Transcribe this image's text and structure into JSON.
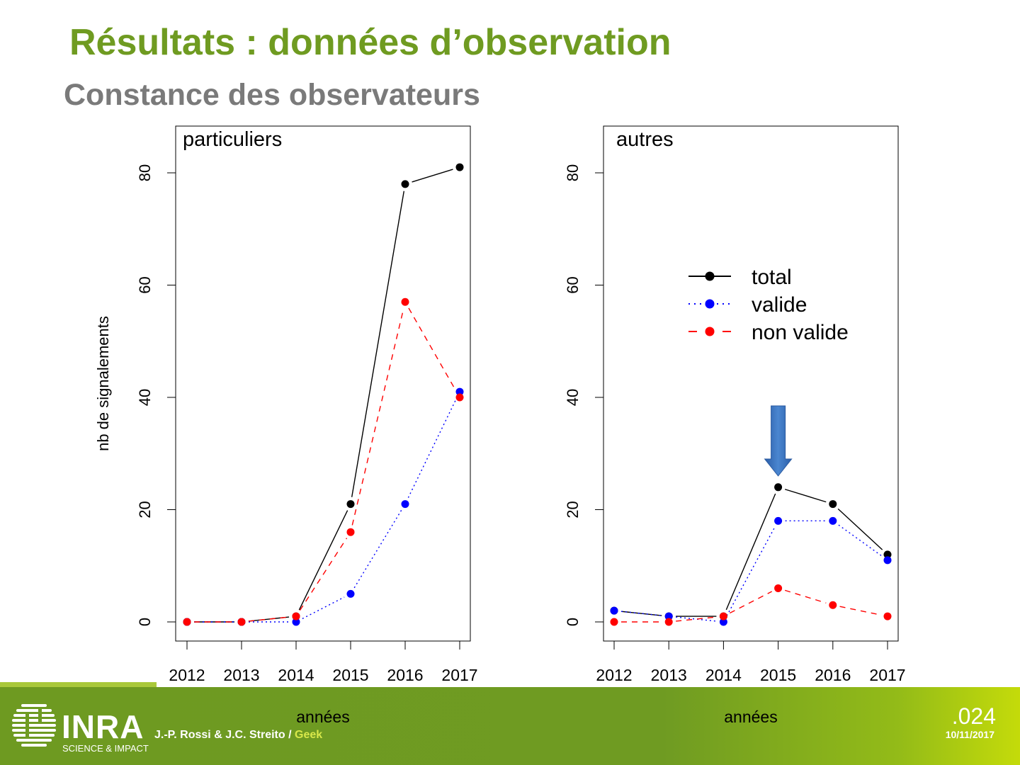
{
  "header": {
    "title": "Résultats : données d’observation",
    "subtitle": "Constance des observateurs"
  },
  "footer": {
    "logo_text": "INRA",
    "logo_tagline": "SCIENCE & IMPACT",
    "authors": "J.-P. Rossi & J.C. Streito /",
    "authors_highlight": "Geek",
    "slide_number": ".024",
    "date": "10/11/2017"
  },
  "colors": {
    "title": "#6f9b21",
    "subtitle": "#7a7a7a",
    "total": "#000000",
    "valide": "#0000ff",
    "non_valide": "#ff0000",
    "arrow": "#3c72b8",
    "footer": "#6f9b22"
  },
  "chart_data": [
    {
      "type": "line",
      "panel_label": "particuliers",
      "x": [
        2012,
        2013,
        2014,
        2015,
        2016,
        2017
      ],
      "xlabel": "années",
      "ylabel": "nb de signalements",
      "ylim": [
        0,
        80
      ],
      "yticks": [
        0,
        20,
        40,
        60,
        80
      ],
      "series": [
        {
          "name": "total",
          "values": [
            0,
            0,
            1,
            21,
            78,
            81
          ],
          "color": "#000000",
          "style": "solid"
        },
        {
          "name": "valide",
          "values": [
            0,
            0,
            0,
            5,
            21,
            41
          ],
          "color": "#0000ff",
          "style": "dotted"
        },
        {
          "name": "non valide",
          "values": [
            0,
            0,
            1,
            16,
            57,
            40
          ],
          "color": "#ff0000",
          "style": "dashed"
        }
      ]
    },
    {
      "type": "line",
      "panel_label": "autres",
      "x": [
        2012,
        2013,
        2014,
        2015,
        2016,
        2017
      ],
      "xlabel": "années",
      "ylabel": "",
      "ylim": [
        0,
        80
      ],
      "yticks": [
        0,
        20,
        40,
        60,
        80
      ],
      "legend": {
        "position": "top-right",
        "entries": [
          "total",
          "valide",
          "non valide"
        ]
      },
      "annotation": {
        "type": "arrow-down",
        "target_x": 2015
      },
      "series": [
        {
          "name": "total",
          "values": [
            2,
            1,
            1,
            24,
            21,
            12
          ],
          "color": "#000000",
          "style": "solid"
        },
        {
          "name": "valide",
          "values": [
            2,
            1,
            0,
            18,
            18,
            11
          ],
          "color": "#0000ff",
          "style": "dotted"
        },
        {
          "name": "non valide",
          "values": [
            0,
            0,
            1,
            6,
            3,
            1
          ],
          "color": "#ff0000",
          "style": "dashed"
        }
      ]
    }
  ]
}
